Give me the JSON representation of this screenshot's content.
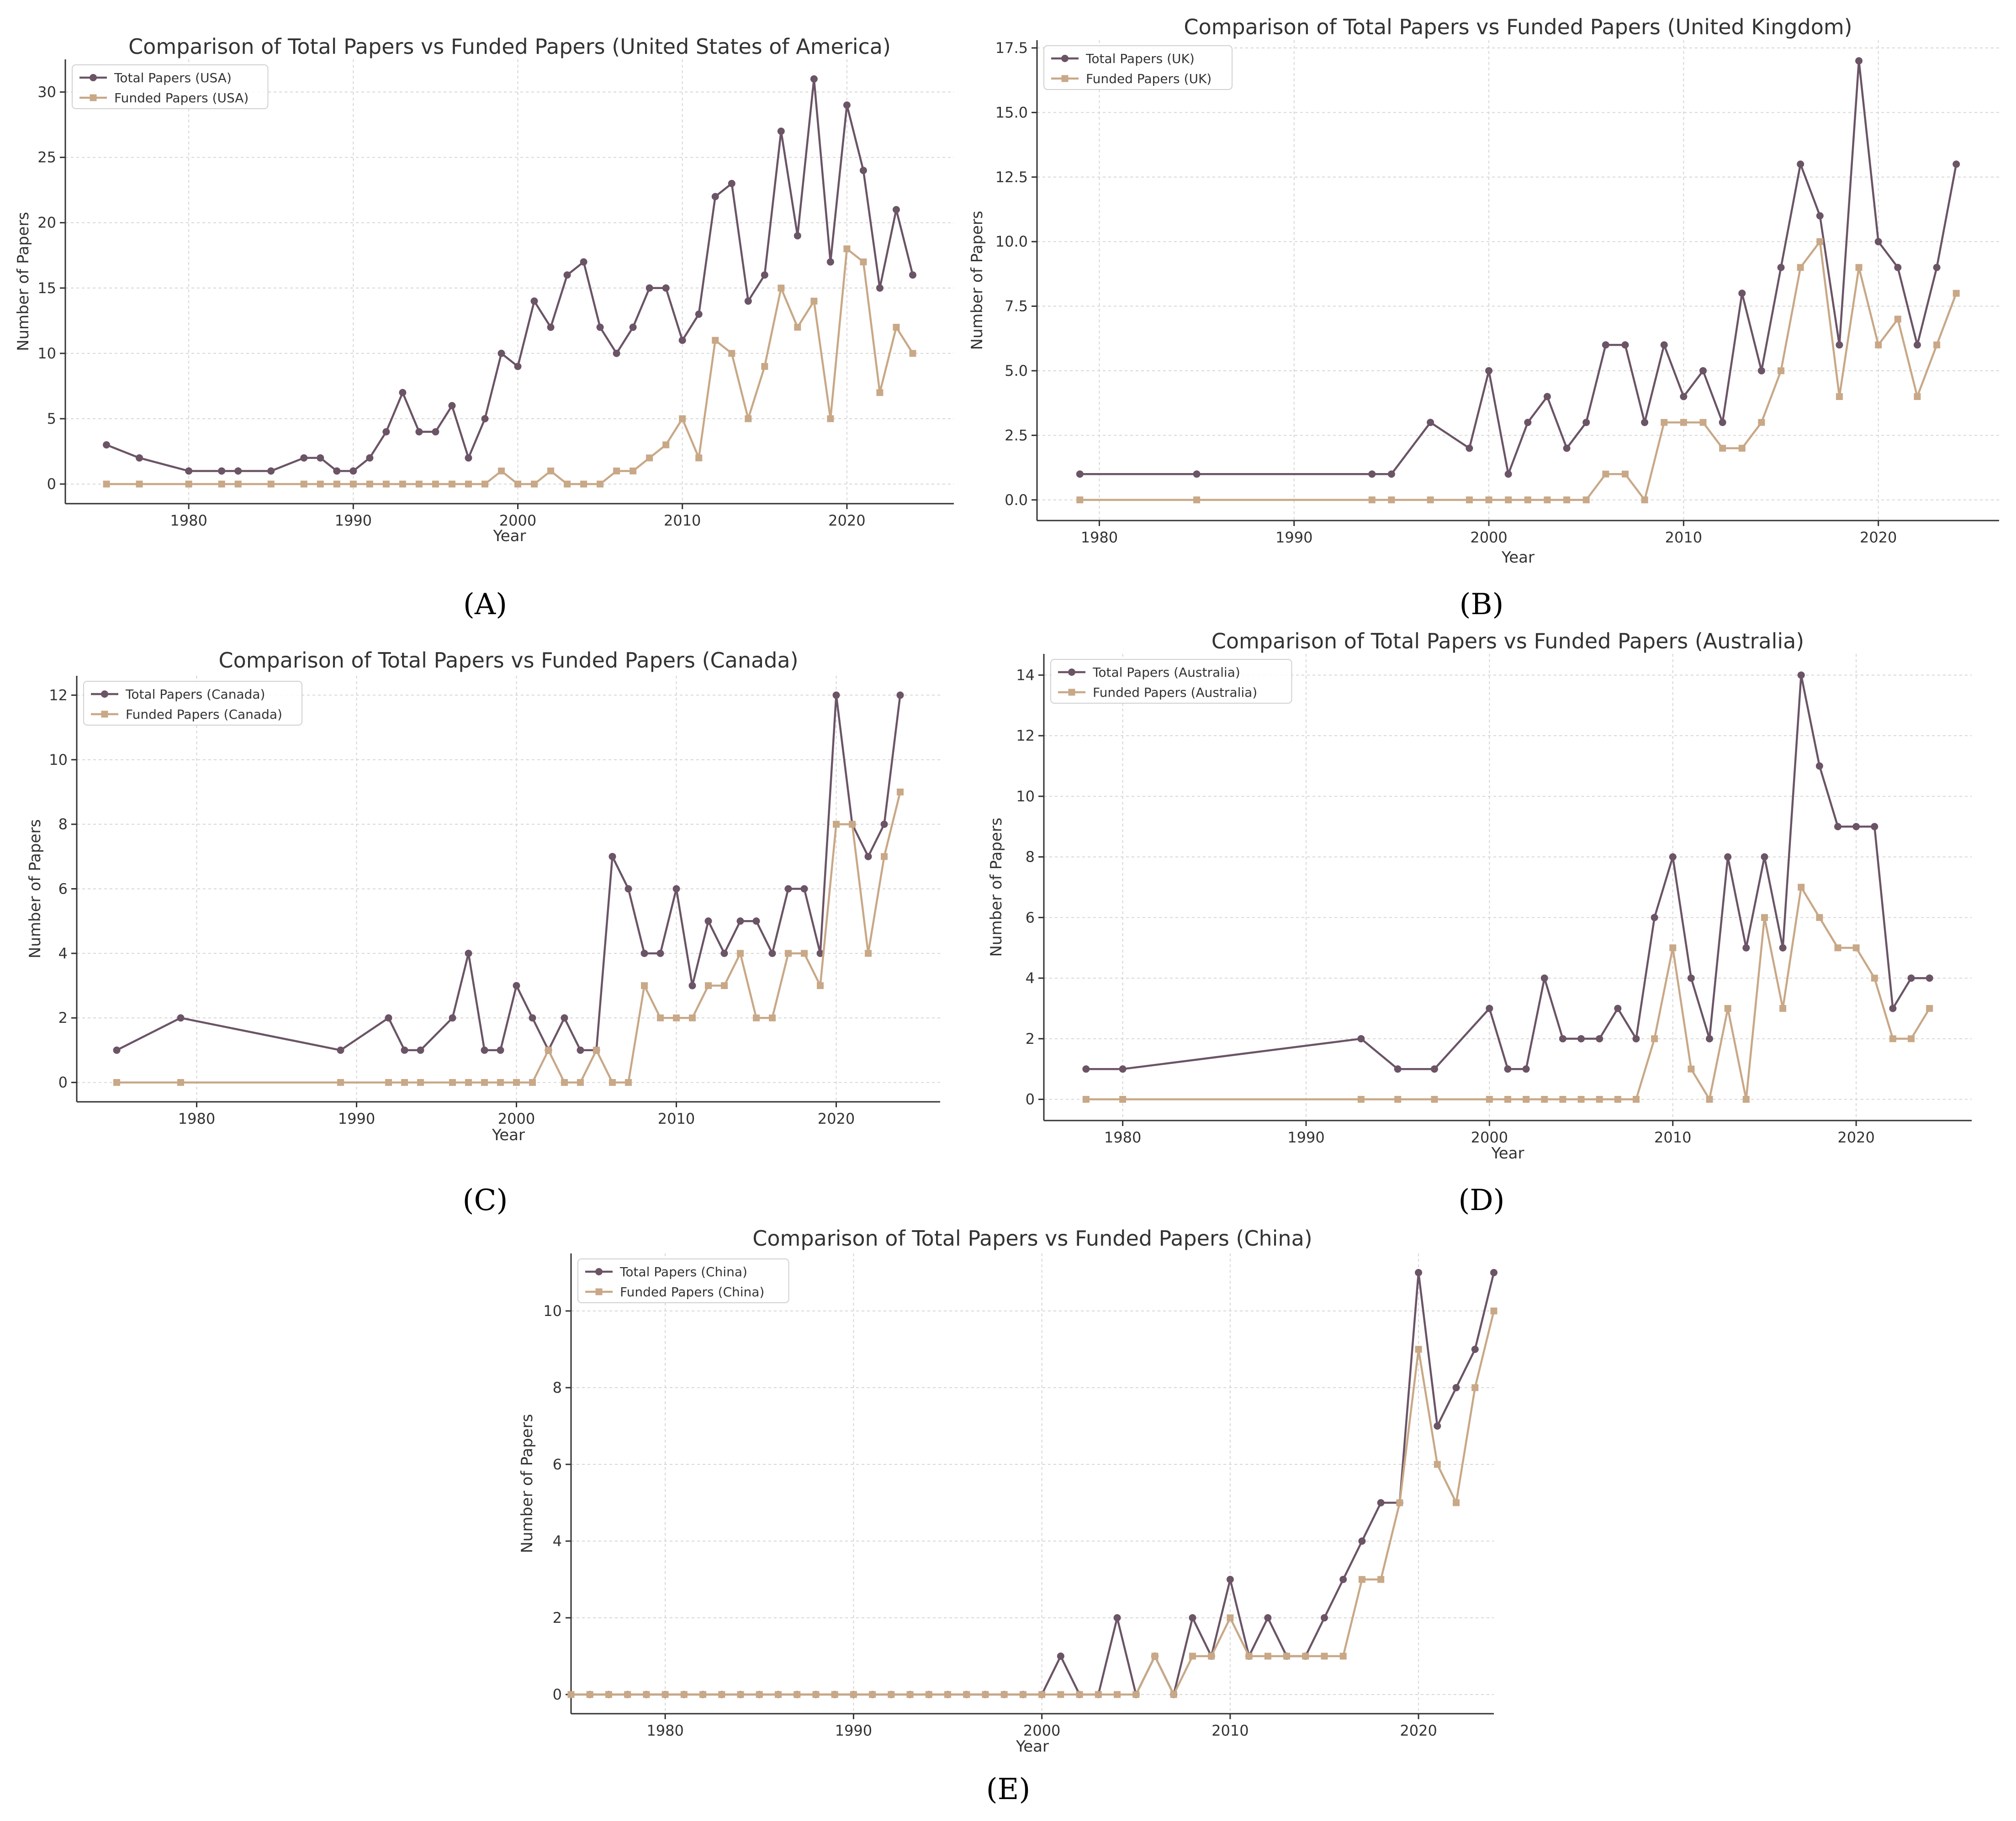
{
  "colors": {
    "total": "#6b5466",
    "funded": "#c8a887"
  },
  "chart_data": [
    {
      "type": "line",
      "panel": "(A)",
      "title": "Comparison of Total Papers vs Funded Papers (United States of America)",
      "xlabel": "Year",
      "ylabel": "Number of Papers",
      "xlim": [
        1972.5,
        2026.5
      ],
      "ylim": [
        -1.5,
        32.5
      ],
      "xticks": [
        1980,
        1990,
        2000,
        2010,
        2020
      ],
      "yticks": [
        0,
        5,
        10,
        15,
        20,
        25,
        30
      ],
      "ytick_labels": [
        "0",
        "5",
        "10",
        "15",
        "20",
        "25",
        "30"
      ],
      "legend": "top-left",
      "series": [
        {
          "name": "Total Papers (USA)",
          "marker": "circle",
          "x": [
            1975,
            1977,
            1980,
            1982,
            1983,
            1985,
            1987,
            1988,
            1989,
            1990,
            1991,
            1992,
            1993,
            1994,
            1995,
            1996,
            1997,
            1998,
            1999,
            2000,
            2001,
            2002,
            2003,
            2004,
            2005,
            2006,
            2007,
            2008,
            2009,
            2010,
            2011,
            2012,
            2013,
            2014,
            2015,
            2016,
            2017,
            2018,
            2019,
            2020,
            2021,
            2022,
            2023,
            2024
          ],
          "y": [
            3,
            2,
            1,
            1,
            1,
            1,
            2,
            2,
            1,
            1,
            2,
            4,
            7,
            4,
            4,
            6,
            2,
            5,
            10,
            9,
            14,
            12,
            16,
            17,
            12,
            10,
            12,
            15,
            15,
            11,
            13,
            22,
            23,
            14,
            16,
            27,
            19,
            31,
            17,
            29,
            24,
            15,
            21,
            16
          ]
        },
        {
          "name": "Funded Papers (USA)",
          "marker": "square",
          "x": [
            1975,
            1977,
            1980,
            1982,
            1983,
            1985,
            1987,
            1988,
            1989,
            1990,
            1991,
            1992,
            1993,
            1994,
            1995,
            1996,
            1997,
            1998,
            1999,
            2000,
            2001,
            2002,
            2003,
            2004,
            2005,
            2006,
            2007,
            2008,
            2009,
            2010,
            2011,
            2012,
            2013,
            2014,
            2015,
            2016,
            2017,
            2018,
            2019,
            2020,
            2021,
            2022,
            2023,
            2024
          ],
          "y": [
            0,
            0,
            0,
            0,
            0,
            0,
            0,
            0,
            0,
            0,
            0,
            0,
            0,
            0,
            0,
            0,
            0,
            0,
            1,
            0,
            0,
            1,
            0,
            0,
            0,
            1,
            1,
            2,
            3,
            5,
            2,
            11,
            10,
            5,
            9,
            15,
            12,
            14,
            5,
            18,
            17,
            7,
            12,
            10
          ]
        }
      ]
    },
    {
      "type": "line",
      "panel": "(B)",
      "title": "Comparison of Total Papers vs Funded Papers (United Kingdom)",
      "xlabel": "Year",
      "ylabel": "Number of Papers",
      "xlim": [
        1976.8,
        2026.2
      ],
      "ylim": [
        -0.8,
        17.8
      ],
      "xticks": [
        1980,
        1990,
        2000,
        2010,
        2020
      ],
      "yticks": [
        0,
        2.5,
        5,
        7.5,
        10,
        12.5,
        15,
        17.5
      ],
      "ytick_labels": [
        "0.0",
        "2.5",
        "5.0",
        "7.5",
        "10.0",
        "12.5",
        "15.0",
        "17.5"
      ],
      "legend": "top-left",
      "series": [
        {
          "name": "Total Papers (UK)",
          "marker": "circle",
          "x": [
            1979,
            1985,
            1994,
            1995,
            1997,
            1999,
            2000,
            2001,
            2002,
            2003,
            2004,
            2005,
            2006,
            2007,
            2008,
            2009,
            2010,
            2011,
            2012,
            2013,
            2014,
            2015,
            2016,
            2017,
            2018,
            2019,
            2020,
            2021,
            2022,
            2023,
            2024
          ],
          "y": [
            1,
            1,
            1,
            1,
            3,
            2,
            5,
            1,
            3,
            4,
            2,
            3,
            6,
            6,
            3,
            6,
            4,
            5,
            3,
            8,
            5,
            9,
            13,
            11,
            6,
            17,
            10,
            9,
            6,
            9,
            13
          ]
        },
        {
          "name": "Funded Papers (UK)",
          "marker": "square",
          "x": [
            1979,
            1985,
            1994,
            1995,
            1997,
            1999,
            2000,
            2001,
            2002,
            2003,
            2004,
            2005,
            2006,
            2007,
            2008,
            2009,
            2010,
            2011,
            2012,
            2013,
            2014,
            2015,
            2016,
            2017,
            2018,
            2019,
            2020,
            2021,
            2022,
            2023,
            2024
          ],
          "y": [
            0,
            0,
            0,
            0,
            0,
            0,
            0,
            0,
            0,
            0,
            0,
            0,
            1,
            1,
            0,
            3,
            3,
            3,
            2,
            2,
            3,
            5,
            9,
            10,
            4,
            9,
            6,
            7,
            4,
            6,
            8
          ]
        }
      ]
    },
    {
      "type": "line",
      "panel": "(C)",
      "title": "Comparison of Total Papers vs Funded Papers (Canada)",
      "xlabel": "Year",
      "ylabel": "Number of Papers",
      "xlim": [
        1972.5,
        2026.5
      ],
      "ylim": [
        -0.6,
        12.6
      ],
      "xticks": [
        1980,
        1990,
        2000,
        2010,
        2020
      ],
      "yticks": [
        0,
        2,
        4,
        6,
        8,
        10,
        12
      ],
      "ytick_labels": [
        "0",
        "2",
        "4",
        "6",
        "8",
        "10",
        "12"
      ],
      "legend": "top-left",
      "series": [
        {
          "name": "Total Papers (Canada)",
          "marker": "circle",
          "x": [
            1975,
            1979,
            1989,
            1992,
            1993,
            1994,
            1996,
            1997,
            1998,
            1999,
            2000,
            2001,
            2002,
            2003,
            2004,
            2005,
            2006,
            2007,
            2008,
            2009,
            2010,
            2011,
            2012,
            2013,
            2014,
            2015,
            2016,
            2017,
            2018,
            2019,
            2020,
            2021,
            2022,
            2023,
            2024
          ],
          "y": [
            1,
            2,
            1,
            2,
            1,
            1,
            2,
            4,
            1,
            1,
            3,
            2,
            1,
            2,
            1,
            1,
            7,
            6,
            4,
            4,
            6,
            3,
            5,
            4,
            5,
            5,
            4,
            6,
            6,
            4,
            12,
            8,
            7,
            8,
            12
          ]
        },
        {
          "name": "Funded Papers (Canada)",
          "marker": "square",
          "x": [
            1975,
            1979,
            1989,
            1992,
            1993,
            1994,
            1996,
            1997,
            1998,
            1999,
            2000,
            2001,
            2002,
            2003,
            2004,
            2005,
            2006,
            2007,
            2008,
            2009,
            2010,
            2011,
            2012,
            2013,
            2014,
            2015,
            2016,
            2017,
            2018,
            2019,
            2020,
            2021,
            2022,
            2023,
            2024
          ],
          "y": [
            0,
            0,
            0,
            0,
            0,
            0,
            0,
            0,
            0,
            0,
            0,
            0,
            1,
            0,
            0,
            1,
            0,
            0,
            3,
            2,
            2,
            2,
            3,
            3,
            4,
            2,
            2,
            4,
            4,
            3,
            8,
            8,
            4,
            7,
            9
          ]
        }
      ]
    },
    {
      "type": "line",
      "panel": "(D)",
      "title": "Comparison of Total Papers vs Funded Papers (Australia)",
      "xlabel": "Year",
      "ylabel": "Number of Papers",
      "xlim": [
        1975.7,
        2026.3
      ],
      "ylim": [
        -0.7,
        14.7
      ],
      "xticks": [
        1980,
        1990,
        2000,
        2010,
        2020
      ],
      "yticks": [
        0,
        2,
        4,
        6,
        8,
        10,
        12,
        14
      ],
      "ytick_labels": [
        "0",
        "2",
        "4",
        "6",
        "8",
        "10",
        "12",
        "14"
      ],
      "legend": "top-left",
      "series": [
        {
          "name": "Total Papers (Australia)",
          "marker": "circle",
          "x": [
            1978,
            1980,
            1993,
            1995,
            1997,
            2000,
            2001,
            2002,
            2003,
            2004,
            2005,
            2006,
            2007,
            2008,
            2009,
            2010,
            2011,
            2012,
            2013,
            2014,
            2015,
            2016,
            2017,
            2018,
            2019,
            2020,
            2021,
            2022,
            2023,
            2024
          ],
          "y": [
            1,
            1,
            2,
            1,
            1,
            3,
            1,
            1,
            4,
            2,
            2,
            2,
            3,
            2,
            6,
            8,
            4,
            2,
            8,
            5,
            8,
            5,
            14,
            11,
            9,
            9,
            9,
            3,
            4,
            4
          ]
        },
        {
          "name": "Funded Papers (Australia)",
          "marker": "square",
          "x": [
            1978,
            1980,
            1993,
            1995,
            1997,
            2000,
            2001,
            2002,
            2003,
            2004,
            2005,
            2006,
            2007,
            2008,
            2009,
            2010,
            2011,
            2012,
            2013,
            2014,
            2015,
            2016,
            2017,
            2018,
            2019,
            2020,
            2021,
            2022,
            2023,
            2024
          ],
          "y": [
            0,
            0,
            0,
            0,
            0,
            0,
            0,
            0,
            0,
            0,
            0,
            0,
            0,
            0,
            2,
            5,
            1,
            0,
            3,
            0,
            6,
            3,
            7,
            6,
            5,
            5,
            4,
            2,
            2,
            3
          ]
        }
      ]
    },
    {
      "type": "line",
      "panel": "(E)",
      "title": "Comparison of Total Papers vs Funded Papers (China)",
      "xlabel": "Year",
      "ylabel": "Number of Papers",
      "xlim": [
        1975,
        2024
      ],
      "ylim": [
        -0.5,
        11.5
      ],
      "xticks": [
        1980,
        1990,
        2000,
        2010,
        2020
      ],
      "yticks": [
        0,
        2,
        4,
        6,
        8,
        10
      ],
      "ytick_labels": [
        "0",
        "2",
        "4",
        "6",
        "8",
        "10"
      ],
      "legend": "top-left",
      "series": [
        {
          "name": "Total Papers (China)",
          "marker": "circle",
          "x": [
            1975,
            1976,
            1977,
            1978,
            1979,
            1980,
            1981,
            1982,
            1983,
            1984,
            1985,
            1986,
            1987,
            1988,
            1989,
            1990,
            1991,
            1992,
            1993,
            1994,
            1995,
            1996,
            1997,
            1998,
            1999,
            2000,
            2001,
            2002,
            2003,
            2004,
            2005,
            2006,
            2007,
            2008,
            2009,
            2010,
            2011,
            2012,
            2013,
            2014,
            2015,
            2016,
            2017,
            2018,
            2019,
            2020,
            2021,
            2022,
            2023,
            2024
          ],
          "y": [
            0,
            0,
            0,
            0,
            0,
            0,
            0,
            0,
            0,
            0,
            0,
            0,
            0,
            0,
            0,
            0,
            0,
            0,
            0,
            0,
            0,
            0,
            0,
            0,
            0,
            0,
            1,
            0,
            0,
            2,
            0,
            1,
            0,
            2,
            1,
            3,
            1,
            2,
            1,
            1,
            2,
            3,
            4,
            5,
            5,
            11,
            7,
            8,
            9,
            11
          ]
        },
        {
          "name": "Funded Papers (China)",
          "marker": "square",
          "x": [
            1975,
            1976,
            1977,
            1978,
            1979,
            1980,
            1981,
            1982,
            1983,
            1984,
            1985,
            1986,
            1987,
            1988,
            1989,
            1990,
            1991,
            1992,
            1993,
            1994,
            1995,
            1996,
            1997,
            1998,
            1999,
            2000,
            2001,
            2002,
            2003,
            2004,
            2005,
            2006,
            2007,
            2008,
            2009,
            2010,
            2011,
            2012,
            2013,
            2014,
            2015,
            2016,
            2017,
            2018,
            2019,
            2020,
            2021,
            2022,
            2023,
            2024
          ],
          "y": [
            0,
            0,
            0,
            0,
            0,
            0,
            0,
            0,
            0,
            0,
            0,
            0,
            0,
            0,
            0,
            0,
            0,
            0,
            0,
            0,
            0,
            0,
            0,
            0,
            0,
            0,
            0,
            0,
            0,
            0,
            0,
            1,
            0,
            1,
            1,
            2,
            1,
            1,
            1,
            1,
            1,
            1,
            3,
            3,
            5,
            9,
            6,
            5,
            8,
            10
          ]
        }
      ]
    }
  ]
}
